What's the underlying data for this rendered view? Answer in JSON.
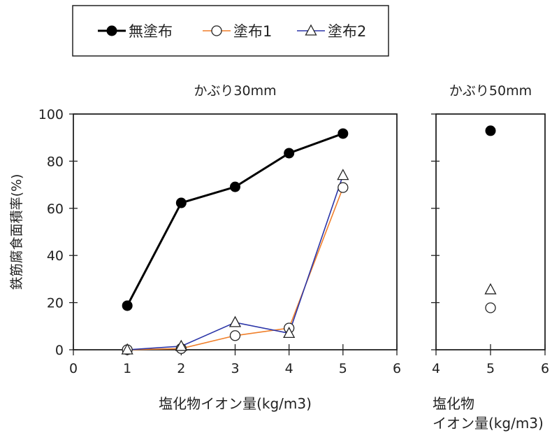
{
  "chart_data": [
    {
      "type": "line",
      "title": "かぶり30mm",
      "xlabel": "塩化物イオン量(kg/m3)",
      "ylabel": "鉄筋腐食面積率(%)",
      "xlim": [
        0,
        6
      ],
      "ylim": [
        0,
        100
      ],
      "xticks": [
        "0",
        "1",
        "2",
        "3",
        "4",
        "5",
        "6"
      ],
      "yticks": [
        "0",
        "20",
        "40",
        "60",
        "80",
        "100"
      ],
      "x": [
        1,
        2,
        3,
        4,
        5
      ],
      "series": [
        {
          "name": "無塗布",
          "marker": "filled-circle",
          "color": "#000000",
          "values": [
            18.7,
            62.3,
            69.1,
            83.4,
            91.7
          ]
        },
        {
          "name": "塗布1",
          "marker": "open-circle",
          "color": "#f07f2a",
          "values": [
            0,
            0.5,
            6,
            9.2,
            68.8
          ]
        },
        {
          "name": "塗布2",
          "marker": "open-triangle",
          "color": "#2b35a8",
          "values": [
            0,
            1.5,
            11.6,
            7,
            74
          ]
        }
      ]
    },
    {
      "type": "scatter",
      "title": "かぶり50mm",
      "xlabel_line1": "塩化物",
      "xlabel_line2": "イオン量(kg/m3)",
      "xlim": [
        4,
        6
      ],
      "ylim": [
        0,
        100
      ],
      "xticks": [
        "4",
        "5",
        "6"
      ],
      "x": [
        5
      ],
      "series": [
        {
          "name": "無塗布",
          "values": [
            92.9
          ]
        },
        {
          "name": "塗布1",
          "values": [
            17.8
          ]
        },
        {
          "name": "塗布2",
          "values": [
            25.5
          ]
        }
      ]
    }
  ],
  "legend": {
    "placement": "top",
    "items": [
      "無塗布",
      "塗布1",
      "塗布2"
    ]
  }
}
